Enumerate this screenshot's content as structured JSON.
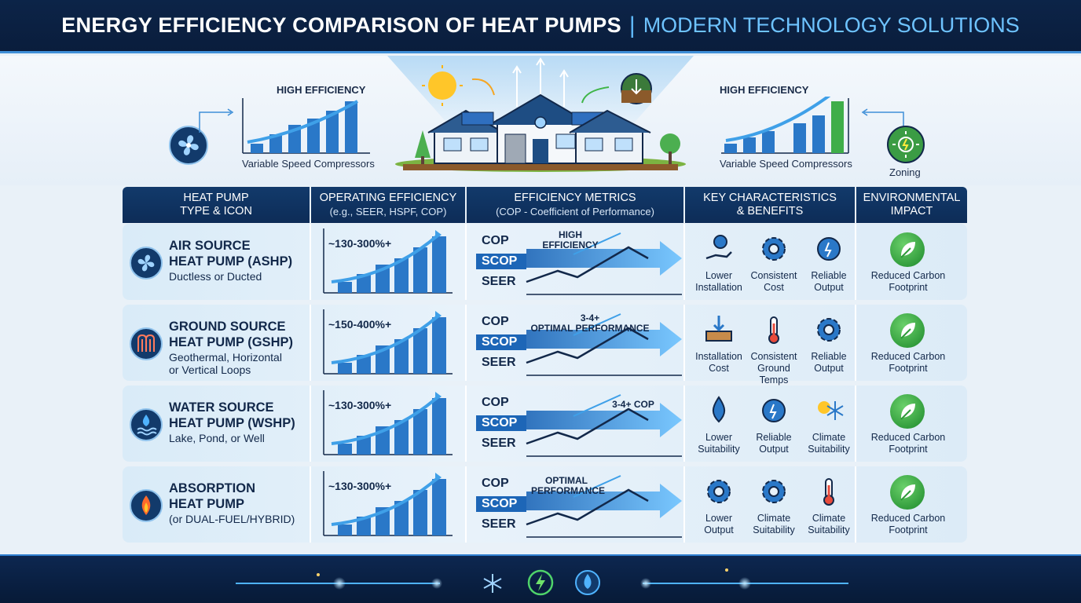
{
  "header": {
    "title": "ENERGY EFFICIENCY COMPARISON OF HEAT PUMPS",
    "separator": "|",
    "subtitle": "MODERN TECHNOLOGY SOLUTIONS"
  },
  "hero": {
    "left_label": "HIGH EFFICIENCY",
    "left_caption": "Variable Speed Compressors",
    "right_label": "HIGH EFFICIENCY",
    "right_caption": "Variable Speed Compressors",
    "zoning_label": "Zoning"
  },
  "columns": [
    {
      "line1": "HEAT PUMP",
      "line2": "TYPE & ICON"
    },
    {
      "line1": "OPERATING EFFICIENCY",
      "line2": "(e.g., SEER, HSPF, COP)"
    },
    {
      "line1": "EFFICIENCY METRICS",
      "line2": "(COP - Coefficient of Performance)"
    },
    {
      "line1": "KEY CHARACTERISTICS",
      "line2": "& BENEFITS"
    },
    {
      "line1": "ENVIRONMENTAL",
      "line2": "IMPACT"
    }
  ],
  "metric_labels": {
    "cop": "COP",
    "scop": "SCOP",
    "seer": "SEER"
  },
  "rows": [
    {
      "name1": "AIR SOURCE",
      "name2": "HEAT PUMP (ASHP)",
      "desc1": "Ductless or Ducted",
      "desc2": "",
      "icon": "fan-icon",
      "efficiency": "~130-300%+",
      "note1": "HIGH",
      "note2": "EFFICIENCY",
      "benefits": [
        {
          "icon": "hand-coin-icon",
          "l1": "Lower",
          "l2": "Installation"
        },
        {
          "icon": "gear-icon",
          "l1": "Consistent",
          "l2": "Cost"
        },
        {
          "icon": "gauge-icon",
          "l1": "Reliable",
          "l2": "Output"
        }
      ],
      "env1": "Reduced Carbon",
      "env2": "Footprint"
    },
    {
      "name1": "GROUND SOURCE",
      "name2": "HEAT PUMP (GSHP)",
      "desc1": "Geothermal, Horizontal",
      "desc2": "or Vertical Loops",
      "icon": "ground-loop-icon",
      "efficiency": "~150-400%+",
      "note1": "3-4+",
      "note2": "OPTIMAL PERFORMANCE",
      "benefits": [
        {
          "icon": "ground-arrow-icon",
          "l1": "Installation",
          "l2": "Cost"
        },
        {
          "icon": "thermometer-icon",
          "l1": "Consistent",
          "l2": "Ground Temps"
        },
        {
          "icon": "gear-check-icon",
          "l1": "Reliable",
          "l2": "Output"
        }
      ],
      "env1": "Reduced Carbon",
      "env2": "Footprint"
    },
    {
      "name1": "WATER SOURCE",
      "name2": "HEAT PUMP (WSHP)",
      "desc1": "Lake, Pond, or Well",
      "desc2": "",
      "icon": "water-icon",
      "efficiency": "~130-300%+",
      "note1": "3-4+ COP",
      "note2": "",
      "benefits": [
        {
          "icon": "droplet-icon",
          "l1": "Lower",
          "l2": "Suitability"
        },
        {
          "icon": "gauge-check-icon",
          "l1": "Reliable",
          "l2": "Output"
        },
        {
          "icon": "sun-snow-icon",
          "l1": "Climate",
          "l2": "Suitability"
        }
      ],
      "env1": "Reduced Carbon",
      "env2": "Footprint"
    },
    {
      "name1": "ABSORPTION",
      "name2": "HEAT PUMP",
      "desc1": "(or DUAL-FUEL/HYBRID)",
      "desc2": "",
      "icon": "flame-icon",
      "efficiency": "~130-300%+",
      "note1": "OPTIMAL",
      "note2": "PERFORMANCE",
      "benefits": [
        {
          "icon": "gear-icon",
          "l1": "Lower",
          "l2": "Output"
        },
        {
          "icon": "gear-icon",
          "l1": "Climate",
          "l2": "Suitability"
        },
        {
          "icon": "thermometer-snow-icon",
          "l1": "Climate",
          "l2": "Suitability"
        }
      ],
      "env1": "Reduced Carbon",
      "env2": "Footprint"
    }
  ],
  "colors": {
    "navy": "#0d2c57",
    "accent": "#3f8fd8",
    "green": "#2f9a3a"
  }
}
